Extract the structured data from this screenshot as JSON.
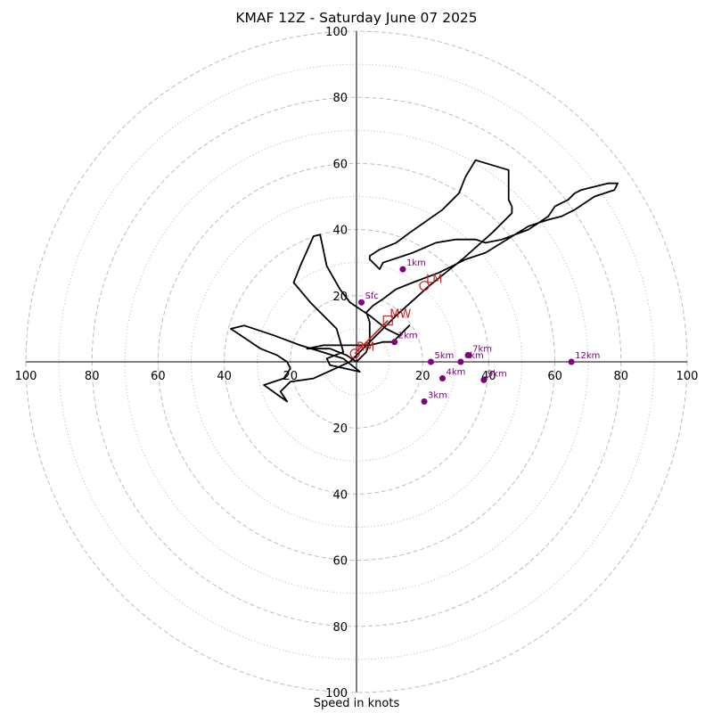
{
  "chart_data": {
    "type": "hodograph",
    "title": "KMAF 12Z - Saturday June 07 2025",
    "xlabel": "Speed in knots",
    "range": [
      -100,
      100
    ],
    "ring_step": 10,
    "tick_labels_pos": [
      "20",
      "40",
      "60",
      "80",
      "100"
    ],
    "tick_labels_neg": [
      "20",
      "40",
      "60",
      "80",
      "100"
    ],
    "hodograph_color": "#000000",
    "marker_color": "#800080",
    "motion_color": "#cc2222",
    "hodograph": [
      [
        0,
        0
      ],
      [
        -3,
        2
      ],
      [
        -8,
        4
      ],
      [
        -15,
        4
      ],
      [
        -10,
        5
      ],
      [
        -2,
        5
      ],
      [
        4,
        5
      ],
      [
        8,
        6
      ],
      [
        11,
        6
      ],
      [
        16,
        11
      ],
      [
        13,
        8
      ],
      [
        9,
        10
      ],
      [
        4,
        14
      ],
      [
        -2,
        18
      ],
      [
        -5,
        22
      ],
      [
        -9,
        29
      ],
      [
        -11,
        38.5
      ],
      [
        -13,
        38
      ],
      [
        -17,
        29
      ],
      [
        -19,
        24
      ],
      [
        -14,
        18
      ],
      [
        -9,
        13
      ],
      [
        -6,
        10
      ],
      [
        -4,
        3
      ],
      [
        -9,
        1
      ],
      [
        -8,
        -1
      ],
      [
        1,
        -3
      ],
      [
        -4,
        1
      ],
      [
        -17,
        5
      ],
      [
        -25,
        8
      ],
      [
        -34,
        11
      ],
      [
        -38,
        10
      ],
      [
        -29,
        4
      ],
      [
        -24,
        2
      ],
      [
        -21,
        0
      ],
      [
        -20,
        -2
      ],
      [
        -22,
        -5
      ],
      [
        -28,
        -7
      ],
      [
        -21,
        -12
      ],
      [
        -23,
        -9
      ],
      [
        -20,
        -6
      ],
      [
        -13,
        -5
      ],
      [
        -2,
        0
      ],
      [
        4,
        6
      ],
      [
        12,
        14
      ],
      [
        22,
        23
      ],
      [
        32,
        31
      ],
      [
        41,
        39
      ],
      [
        47,
        45
      ],
      [
        47,
        47
      ],
      [
        46,
        49
      ],
      [
        46,
        58
      ],
      [
        36,
        61
      ],
      [
        33,
        56
      ],
      [
        31,
        51
      ],
      [
        26,
        46
      ],
      [
        16,
        39
      ],
      [
        12,
        36
      ],
      [
        7,
        34
      ],
      [
        4,
        32
      ],
      [
        4,
        31
      ],
      [
        5,
        30
      ],
      [
        6,
        29
      ],
      [
        7,
        28
      ],
      [
        8,
        30
      ],
      [
        17,
        33
      ],
      [
        24,
        36
      ],
      [
        30,
        37
      ],
      [
        36,
        37
      ],
      [
        39,
        36
      ],
      [
        44,
        37
      ],
      [
        52,
        40
      ],
      [
        55,
        42
      ],
      [
        58,
        44
      ],
      [
        60,
        47
      ],
      [
        64,
        49
      ],
      [
        66,
        51
      ],
      [
        68,
        52
      ],
      [
        76,
        54
      ],
      [
        79,
        54
      ],
      [
        78,
        52
      ],
      [
        72,
        50
      ],
      [
        66,
        46
      ],
      [
        62,
        44
      ],
      [
        58,
        43
      ],
      [
        55,
        42
      ],
      [
        52,
        41
      ],
      [
        39,
        33
      ],
      [
        33,
        31
      ],
      [
        25,
        27
      ],
      [
        17,
        24
      ],
      [
        12,
        22
      ],
      [
        8,
        19
      ],
      [
        5,
        17
      ],
      [
        3,
        15
      ],
      [
        4,
        12
      ],
      [
        4,
        9
      ],
      [
        4,
        6
      ],
      [
        3,
        3
      ],
      [
        0,
        0
      ]
    ],
    "height_markers": [
      {
        "label": "Sfc",
        "u": 1.5,
        "v": 18
      },
      {
        "label": "1km",
        "u": 14,
        "v": 28
      },
      {
        "label": "2km",
        "u": 11.5,
        "v": 6
      },
      {
        "label": "3km",
        "u": 20.5,
        "v": -12
      },
      {
        "label": "4km",
        "u": 26,
        "v": -5
      },
      {
        "label": "5km",
        "u": 22.5,
        "v": 0
      },
      {
        "label": "6km",
        "u": 31.5,
        "v": 0
      },
      {
        "label": "7km",
        "u": 34,
        "v": 2
      },
      {
        "label": "9km",
        "u": 38.5,
        "v": -5.5
      },
      {
        "label": "12km",
        "u": 65,
        "v": 0
      }
    ],
    "storm_motion": [
      {
        "label": "LM",
        "u": 20.5,
        "v": 23
      },
      {
        "label": "MW",
        "u": 9.5,
        "v": 12.5
      },
      {
        "label": "RM",
        "u": -0.5,
        "v": 2.5
      }
    ]
  }
}
